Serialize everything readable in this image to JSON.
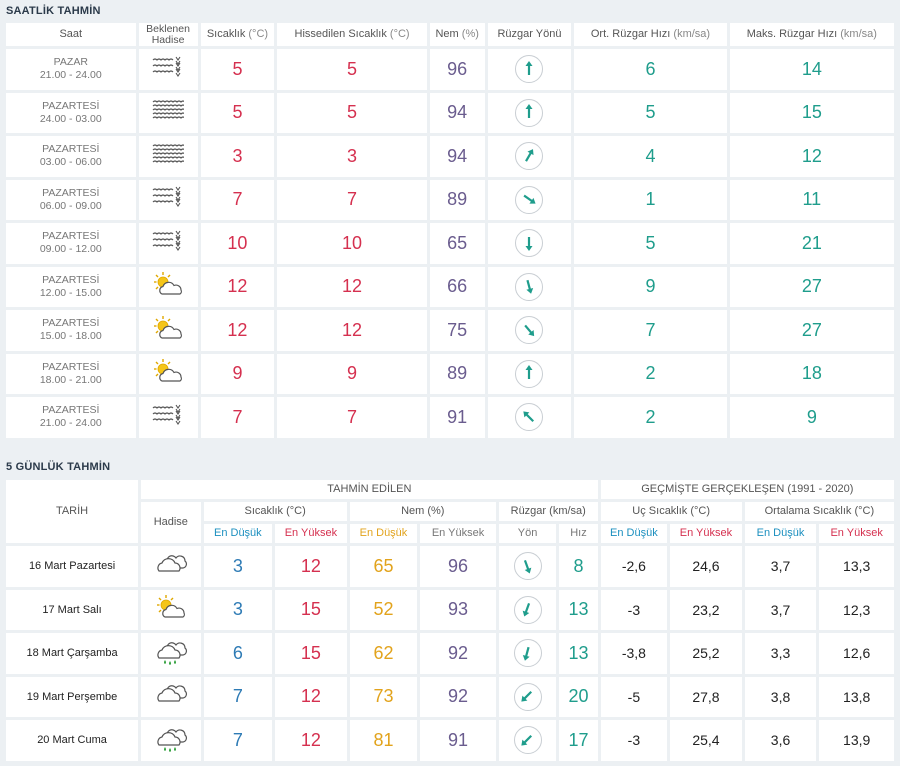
{
  "hourly": {
    "title": "SAATLİK TAHMİN",
    "headers": {
      "saat": "Saat",
      "hadise": "Beklenen Hadise",
      "sicaklik": "Sıcaklık",
      "sicaklik_unit": "(°C)",
      "hissedilen": "Hissedilen Sıcaklık",
      "hissedilen_unit": "(°C)",
      "nem": "Nem",
      "nem_unit": "(%)",
      "ruzgar_yonu": "Rüzgar Yönü",
      "ort_ruzgar": "Ort. Rüzgar Hızı",
      "ort_ruzgar_unit": "(km/sa)",
      "maks_ruzgar": "Maks. Rüzgar Hızı",
      "maks_ruzgar_unit": "(km/sa)"
    },
    "rows": [
      {
        "day": "PAZAR",
        "time": "21.00 - 24.00",
        "icon": "fog-icon",
        "temp": "5",
        "feels": "5",
        "humidity": "96",
        "wind_dir_deg": 0,
        "wind_avg": "6",
        "wind_max": "14"
      },
      {
        "day": "PAZARTESİ",
        "time": "24.00 - 03.00",
        "icon": "dense-fog-icon",
        "temp": "5",
        "feels": "5",
        "humidity": "94",
        "wind_dir_deg": 0,
        "wind_avg": "5",
        "wind_max": "15"
      },
      {
        "day": "PAZARTESİ",
        "time": "03.00 - 06.00",
        "icon": "dense-fog-icon",
        "temp": "3",
        "feels": "3",
        "humidity": "94",
        "wind_dir_deg": 30,
        "wind_avg": "4",
        "wind_max": "12"
      },
      {
        "day": "PAZARTESİ",
        "time": "06.00 - 09.00",
        "icon": "fog-icon",
        "temp": "7",
        "feels": "7",
        "humidity": "89",
        "wind_dir_deg": 125,
        "wind_avg": "1",
        "wind_max": "11"
      },
      {
        "day": "PAZARTESİ",
        "time": "09.00 - 12.00",
        "icon": "fog-icon",
        "temp": "10",
        "feels": "10",
        "humidity": "65",
        "wind_dir_deg": 180,
        "wind_avg": "5",
        "wind_max": "21"
      },
      {
        "day": "PAZARTESİ",
        "time": "12.00 - 15.00",
        "icon": "partly-cloudy-icon",
        "temp": "12",
        "feels": "12",
        "humidity": "66",
        "wind_dir_deg": 165,
        "wind_avg": "9",
        "wind_max": "27"
      },
      {
        "day": "PAZARTESİ",
        "time": "15.00 - 18.00",
        "icon": "partly-cloudy-icon",
        "temp": "12",
        "feels": "12",
        "humidity": "75",
        "wind_dir_deg": 140,
        "wind_avg": "7",
        "wind_max": "27"
      },
      {
        "day": "PAZARTESİ",
        "time": "18.00 - 21.00",
        "icon": "partly-cloudy-icon",
        "temp": "9",
        "feels": "9",
        "humidity": "89",
        "wind_dir_deg": 0,
        "wind_avg": "2",
        "wind_max": "18"
      },
      {
        "day": "PAZARTESİ",
        "time": "21.00 - 24.00",
        "icon": "fog-icon",
        "temp": "7",
        "feels": "7",
        "humidity": "91",
        "wind_dir_deg": 315,
        "wind_avg": "2",
        "wind_max": "9"
      }
    ]
  },
  "daily": {
    "title": "5 GÜNLÜK TAHMİN",
    "headers": {
      "tarih": "TARİH",
      "hadise": "Hadise",
      "tahmin_edilen": "TAHMİN EDİLEN",
      "gecmiste": "GEÇMİŞTE GERÇEKLEŞEN (1991 - 2020)",
      "sicaklik": "Sıcaklık",
      "sicaklik_unit": "(°C)",
      "nem": "Nem",
      "nem_unit": "(%)",
      "ruzgar": "Rüzgar",
      "ruzgar_unit": "(km/sa)",
      "uc_sicaklik": "Uç Sıcaklık",
      "uc_sicaklik_unit": "(°C)",
      "ort_sicaklik": "Ortalama Sıcaklık",
      "ort_sicaklik_unit": "(°C)",
      "en_dusuk": "En Düşük",
      "en_yuksek": "En Yüksek",
      "yon": "Yön",
      "hiz": "Hız"
    },
    "rows": [
      {
        "date": "16 Mart Pazartesi",
        "icon": "cloudy-icon",
        "t_low": "3",
        "t_high": "12",
        "n_low": "65",
        "n_high": "96",
        "wind_dir_deg": 160,
        "wind_speed": "8",
        "ext_low": "-2,6",
        "ext_high": "24,6",
        "avg_low": "3,7",
        "avg_high": "13,3"
      },
      {
        "date": "17 Mart Salı",
        "icon": "partly-cloudy-icon",
        "t_low": "3",
        "t_high": "15",
        "n_low": "52",
        "n_high": "93",
        "wind_dir_deg": 200,
        "wind_speed": "13",
        "ext_low": "-3",
        "ext_high": "23,2",
        "avg_low": "3,7",
        "avg_high": "12,3"
      },
      {
        "date": "18 Mart Çarşamba",
        "icon": "rain-icon",
        "t_low": "6",
        "t_high": "15",
        "n_low": "62",
        "n_high": "92",
        "wind_dir_deg": 195,
        "wind_speed": "13",
        "ext_low": "-3,8",
        "ext_high": "25,2",
        "avg_low": "3,3",
        "avg_high": "12,6"
      },
      {
        "date": "19 Mart Perşembe",
        "icon": "cloudy-icon",
        "t_low": "7",
        "t_high": "12",
        "n_low": "73",
        "n_high": "92",
        "wind_dir_deg": 225,
        "wind_speed": "20",
        "ext_low": "-5",
        "ext_high": "27,8",
        "avg_low": "3,8",
        "avg_high": "13,8"
      },
      {
        "date": "20 Mart Cuma",
        "icon": "rain-icon",
        "t_low": "7",
        "t_high": "12",
        "n_low": "81",
        "n_high": "91",
        "wind_dir_deg": 225,
        "wind_speed": "17",
        "ext_low": "-3",
        "ext_high": "25,4",
        "avg_low": "3,6",
        "avg_high": "13,9"
      }
    ]
  }
}
